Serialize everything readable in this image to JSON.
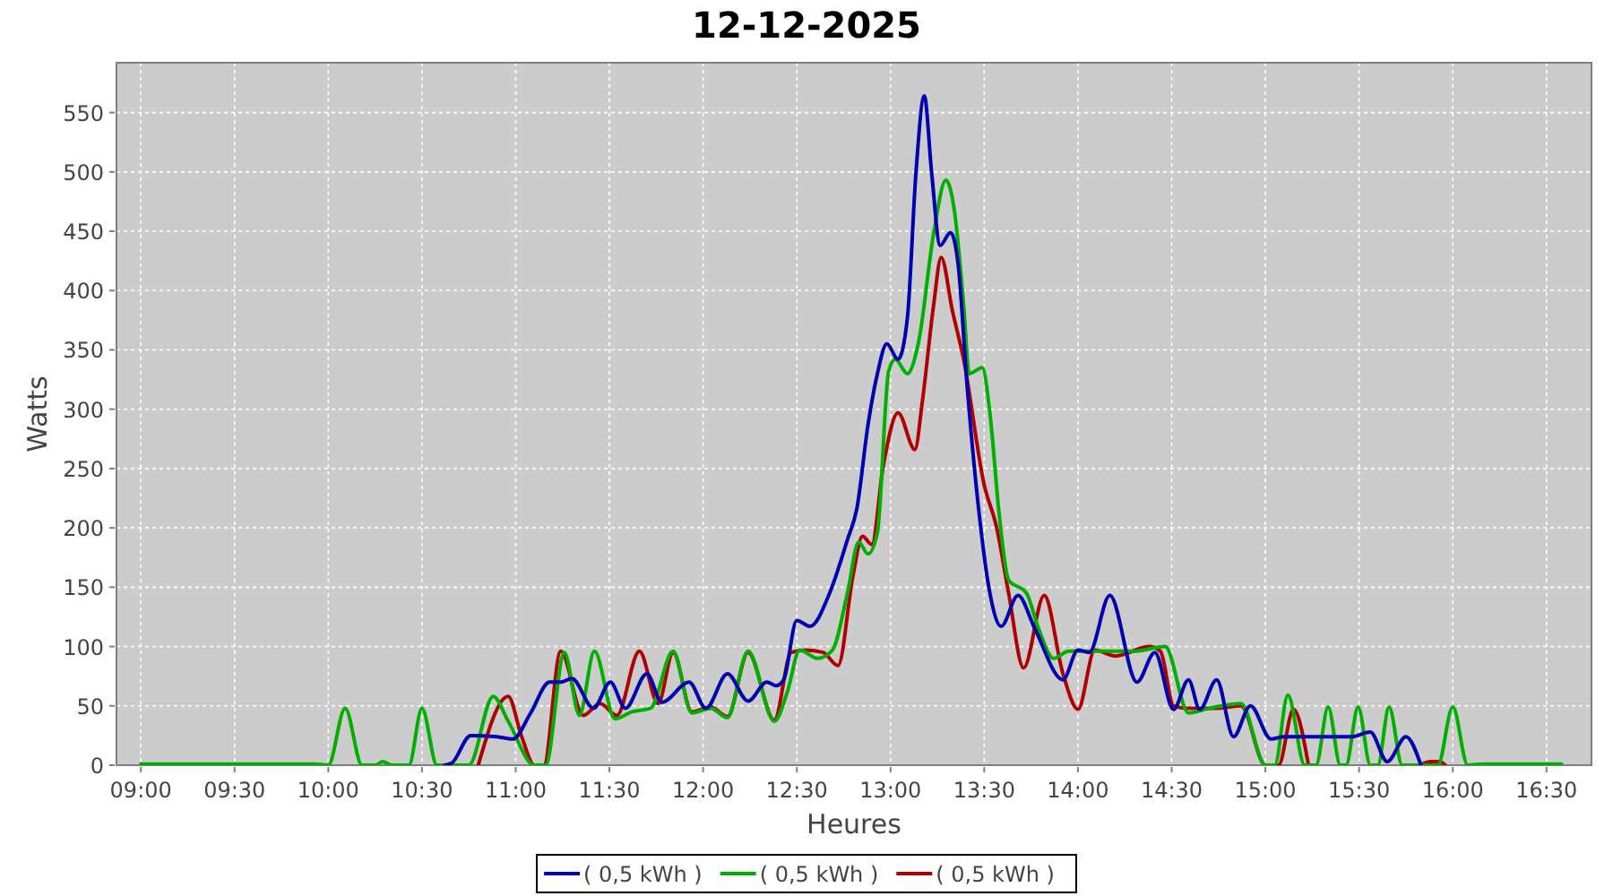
{
  "chart_data": {
    "type": "line",
    "title": "12-12-2025",
    "xlabel": "Heures",
    "ylabel": "Watts",
    "xlim": [
      8.87,
      16.74
    ],
    "ylim": [
      0,
      592
    ],
    "xticks": [
      {
        "value": 9,
        "label": "09:00"
      },
      {
        "value": 9.5,
        "label": "09:30"
      },
      {
        "value": 10,
        "label": "10:00"
      },
      {
        "value": 10.5,
        "label": "10:30"
      },
      {
        "value": 11,
        "label": "11:00"
      },
      {
        "value": 11.5,
        "label": "11:30"
      },
      {
        "value": 12,
        "label": "12:00"
      },
      {
        "value": 12.5,
        "label": "12:30"
      },
      {
        "value": 13,
        "label": "13:00"
      },
      {
        "value": 13.5,
        "label": "13:30"
      },
      {
        "value": 14,
        "label": "14:00"
      },
      {
        "value": 14.5,
        "label": "14:30"
      },
      {
        "value": 15,
        "label": "15:00"
      },
      {
        "value": 15.5,
        "label": "15:30"
      },
      {
        "value": 16,
        "label": "16:00"
      },
      {
        "value": 16.5,
        "label": "16:30"
      }
    ],
    "yticks": [
      0,
      50,
      100,
      150,
      200,
      250,
      300,
      350,
      400,
      450,
      500,
      550
    ],
    "grid": true,
    "legend": "bottom",
    "line_style": "solid",
    "series": [
      {
        "name": "( 0,5 kWh )",
        "color": "#0000b0",
        "x": [
          10.62,
          10.66,
          10.76,
          10.9,
          10.985,
          11.08,
          11.18,
          11.24,
          11.3,
          11.415,
          11.505,
          11.585,
          11.7,
          11.78,
          11.925,
          12.015,
          12.13,
          12.24,
          12.34,
          12.39,
          12.43,
          12.5,
          12.57,
          12.675,
          12.77,
          12.82,
          12.88,
          12.93,
          12.98,
          13.04,
          13.09,
          13.135,
          13.18,
          13.22,
          13.265,
          13.32,
          13.36,
          13.41,
          13.47,
          13.53,
          13.59,
          13.68,
          13.77,
          13.92,
          14,
          14.06,
          14.17,
          14.315,
          14.41,
          14.51,
          14.59,
          14.65,
          14.74,
          14.83,
          14.92,
          15.03,
          15.1,
          15.3,
          15.46,
          15.56,
          15.65,
          15.75,
          15.83
        ],
        "values": [
          0,
          2,
          25,
          24,
          22,
          44,
          70,
          70,
          73,
          48,
          70,
          48,
          77,
          53,
          70,
          48,
          77,
          54,
          70,
          67,
          72,
          122,
          117,
          145,
          190,
          216,
          287,
          330,
          355,
          342,
          377,
          498,
          564,
          498,
          438,
          449,
          423,
          317,
          216,
          145,
          117,
          143,
          115,
          72,
          97,
          95,
          143,
          70,
          95,
          47,
          72,
          47,
          72,
          24,
          50,
          22,
          24,
          24,
          24,
          28,
          3,
          24,
          0
        ]
      },
      {
        "name": "( 0,5 kWh )",
        "color": "#00b000",
        "x": [
          9,
          9.25,
          9.5,
          9.75,
          9.92,
          10,
          10.09,
          10.18,
          10.25,
          10.29,
          10.34,
          10.43,
          10.5,
          10.58,
          10.75,
          10.88,
          10.96,
          11.1,
          11.16,
          11.26,
          11.34,
          11.42,
          11.53,
          11.62,
          11.72,
          11.84,
          11.94,
          12.04,
          12.13,
          12.24,
          12.38,
          12.45,
          12.515,
          12.61,
          12.69,
          12.77,
          12.83,
          12.88,
          12.93,
          12.99,
          13.025,
          13.09,
          13.15,
          13.23,
          13.295,
          13.34,
          13.39,
          13.42,
          13.49,
          13.53,
          13.58,
          13.63,
          13.725,
          13.79,
          13.87,
          13.95,
          14.1,
          14.3,
          14.465,
          14.59,
          14.7,
          14.87,
          15,
          15.05,
          15.12,
          15.21,
          15.27,
          15.335,
          15.4,
          15.43,
          15.495,
          15.56,
          15.6,
          15.66,
          15.73,
          15.92,
          16,
          16.08,
          16.16,
          16.3,
          16.45,
          16.58
        ],
        "values": [
          1,
          1,
          1,
          1,
          1,
          0,
          48,
          0,
          0,
          3,
          0,
          0,
          48,
          0,
          0,
          58,
          37,
          0,
          0,
          95,
          42,
          96,
          39,
          45,
          48,
          96,
          44,
          48,
          40,
          96,
          37,
          62,
          97,
          90,
          97,
          145,
          188,
          178,
          196,
          332,
          342,
          330,
          357,
          448,
          493,
          468,
          388,
          330,
          335,
          297,
          211,
          156,
          145,
          115,
          90,
          96,
          96,
          96,
          100,
          44,
          48,
          52,
          0,
          0,
          59,
          0,
          0,
          49,
          0,
          0,
          49,
          0,
          0,
          49,
          0,
          0,
          49,
          0,
          1,
          1,
          1,
          1
        ]
      },
      {
        "name": "( 0,5 kWh )",
        "color": "#b00000",
        "x": [
          10.8,
          10.96,
          11.03,
          11.1,
          11.15,
          11.24,
          11.36,
          11.45,
          11.54,
          11.66,
          11.76,
          11.84,
          11.94,
          12.04,
          12.13,
          12.24,
          12.38,
          12.47,
          12.55,
          12.64,
          12.72,
          12.8,
          12.85,
          12.9,
          12.96,
          13.04,
          13.13,
          13.17,
          13.23,
          13.27,
          13.33,
          13.39,
          13.5,
          13.565,
          13.63,
          13.71,
          13.82,
          13.92,
          14,
          14.09,
          14.2,
          14.38,
          14.44,
          14.51,
          14.59,
          14.75,
          14.87,
          15,
          15.07,
          15.15,
          15.23,
          15.5,
          15.84,
          15.88,
          15.93,
          15.96
        ],
        "values": [
          0,
          58,
          25,
          0,
          0,
          96,
          42,
          52,
          42,
          96,
          52,
          95,
          45,
          49,
          41,
          95,
          38,
          95,
          97,
          95,
          84,
          160,
          193,
          186,
          251,
          297,
          266,
          307,
          388,
          428,
          383,
          342,
          236,
          201,
          145,
          82,
          143,
          77,
          47,
          97,
          92,
          100,
          96,
          50,
          48,
          48,
          50,
          0,
          0,
          47,
          0,
          null,
          1,
          3,
          3,
          0
        ]
      }
    ]
  }
}
